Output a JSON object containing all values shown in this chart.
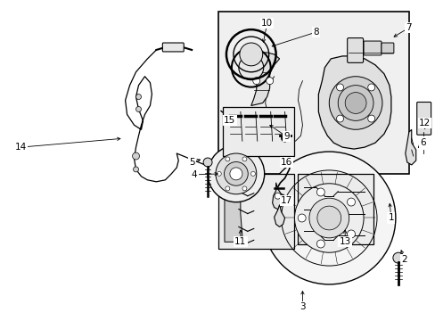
{
  "bg_color": "#ffffff",
  "lc": "#000000",
  "figsize": [
    4.89,
    3.6
  ],
  "dpi": 100,
  "gray_light": "#e8e8e8",
  "gray_mid": "#c8c8c8",
  "gray_dark": "#aaaaaa"
}
